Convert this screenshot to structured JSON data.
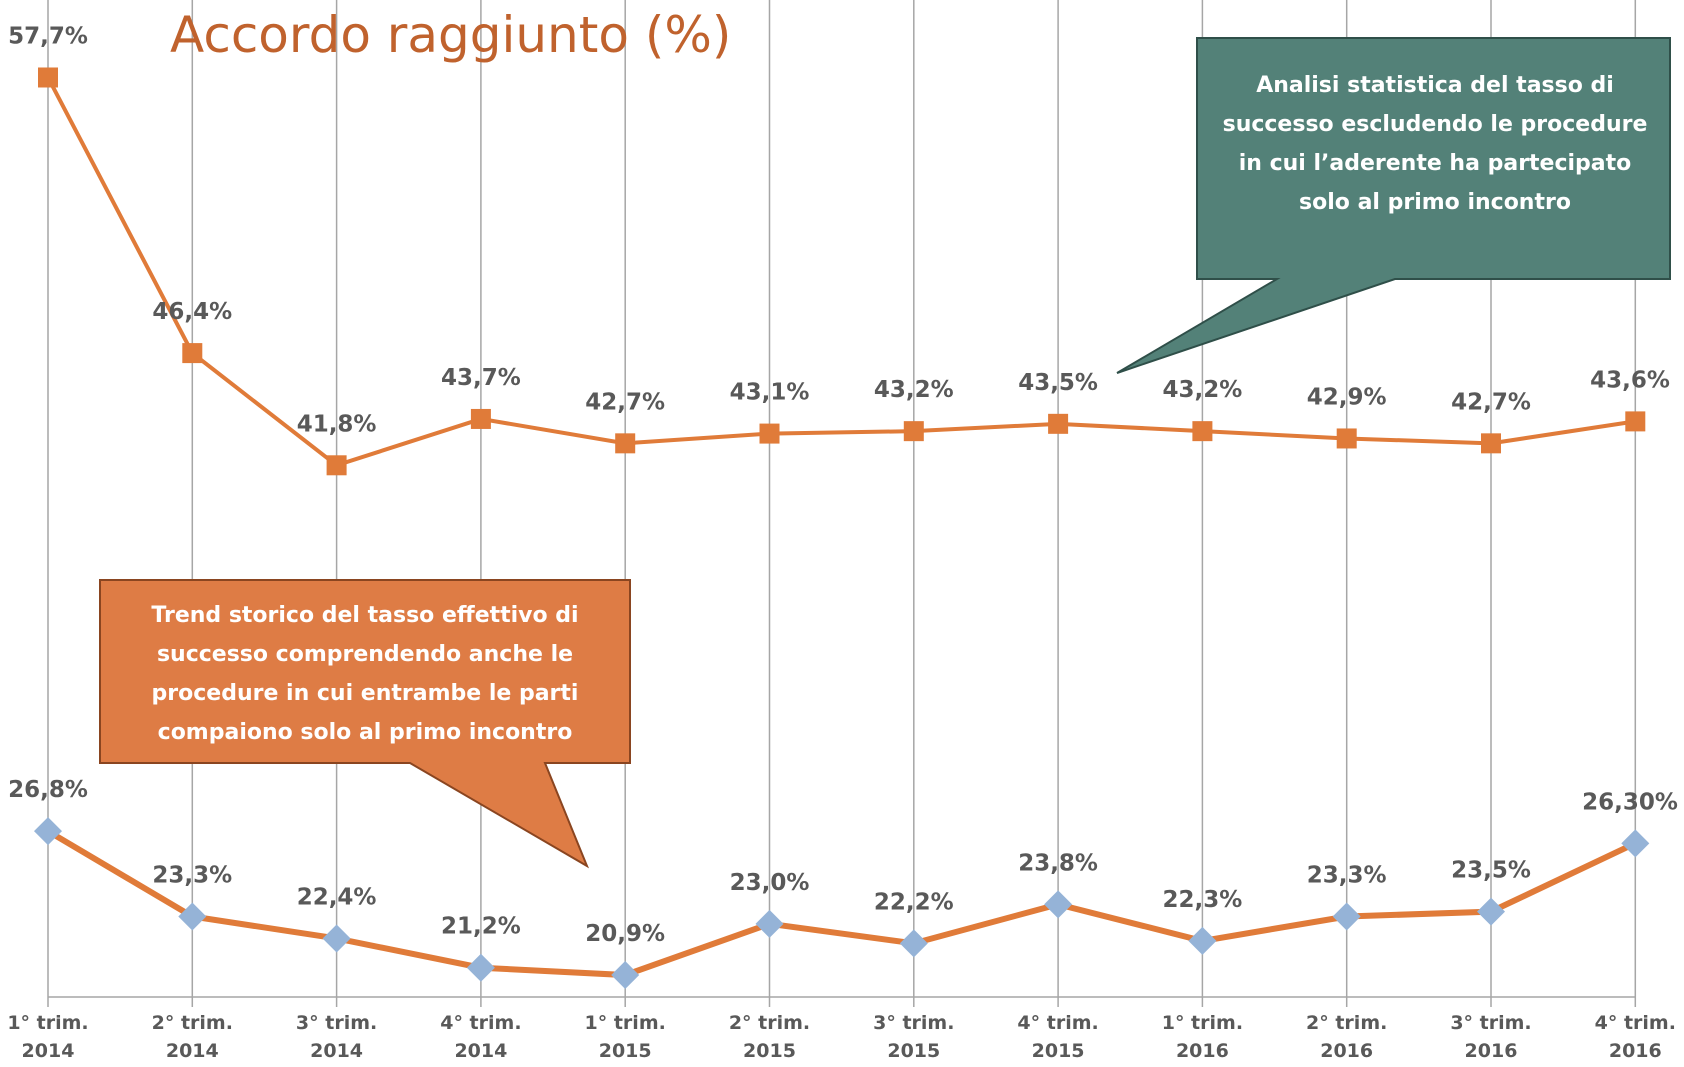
{
  "chart_data": {
    "type": "line",
    "title": "Accordo raggiunto (%)",
    "categories": [
      "1° trim.\n2014",
      "2° trim.\n2014",
      "3° trim.\n2014",
      "4° trim.\n2014",
      "1° trim.\n2015",
      "2° trim.\n2015",
      "3° trim.\n2015",
      "4° trim.\n2015",
      "1° trim.\n2016",
      "2° trim.\n2016",
      "3° trim.\n2016",
      "4° trim.\n2016"
    ],
    "series": [
      {
        "color": "#E07B39",
        "marker_color": "#E07B39",
        "marker": "square",
        "values": [
          57.7,
          46.4,
          41.8,
          43.7,
          42.7,
          43.1,
          43.2,
          43.5,
          43.2,
          42.9,
          42.7,
          43.6
        ],
        "value_labels": [
          "57,7%",
          "46,4%",
          "41,8%",
          "43,7%",
          "42,7%",
          "43,1%",
          "43,2%",
          "43,5%",
          "43,2%",
          "42,9%",
          "42,7%",
          "43,6%"
        ]
      },
      {
        "color": "#E07B39",
        "marker_color": "#95B3D7",
        "marker": "diamond",
        "values": [
          26.8,
          23.3,
          22.4,
          21.2,
          20.9,
          23.0,
          22.2,
          23.8,
          22.3,
          23.3,
          23.5,
          26.3
        ],
        "value_labels": [
          "26,8%",
          "23,3%",
          "22,4%",
          "21,2%",
          "20,9%",
          "23,0%",
          "22,2%",
          "23,8%",
          "22,3%",
          "23,3%",
          "23,5%",
          "26,30%"
        ]
      }
    ],
    "ylim": [
      20,
      61
    ],
    "annotations": [
      {
        "text": "Analisi statistica del tasso di successo escludendo le procedure in cui l’aderente ha partecipato solo al primo incontro"
      },
      {
        "text": "Trend storico del tasso effettivo di successo comprendendo anche le procedure in cui entrambe le parti compaiono solo al primo incontro"
      }
    ]
  }
}
